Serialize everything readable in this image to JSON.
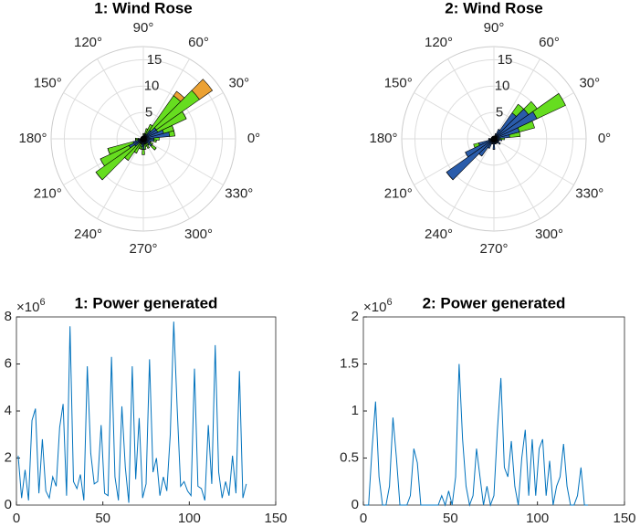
{
  "chart_data": [
    {
      "type": "polar_bar",
      "title": "1: Wind Rose",
      "theta": [
        0,
        10,
        20,
        30,
        40,
        50,
        60,
        70,
        80,
        90,
        100,
        110,
        120,
        130,
        140,
        150,
        160,
        170,
        180,
        190,
        200,
        210,
        220,
        230,
        240,
        250,
        260,
        270,
        280,
        290,
        300,
        310,
        320,
        330,
        340,
        350
      ],
      "series": [
        {
          "color": "#2a5caa",
          "values": [
            2,
            5,
            4,
            3,
            3,
            2,
            1,
            1,
            0.5,
            0.5,
            0.5,
            0.5,
            0.5,
            0.5,
            0.5,
            0.5,
            0.5,
            0.5,
            1,
            1,
            2,
            3,
            2,
            1,
            1,
            1,
            1.5,
            2,
            1,
            1,
            1,
            1,
            2,
            1.5,
            1.5,
            2
          ]
        },
        {
          "color": "#66dd1f",
          "values": [
            1,
            1,
            2,
            6,
            10,
            8,
            2,
            1,
            0.5,
            0.5,
            0,
            0,
            0,
            0,
            0,
            0,
            0,
            0,
            0.5,
            0.5,
            5,
            6,
            9,
            4,
            2,
            1,
            0.5,
            1,
            1,
            0.5,
            1,
            0.5,
            1,
            0.5,
            0,
            0.5
          ]
        },
        {
          "color": "#eba133",
          "values": [
            0,
            0,
            0,
            0,
            3,
            1,
            0,
            0,
            0,
            0,
            0,
            0,
            0,
            0,
            0,
            0,
            0,
            0,
            0,
            0,
            0,
            0,
            0,
            0,
            0,
            0,
            0,
            0,
            0,
            0,
            0,
            0,
            0,
            0,
            0,
            0
          ]
        }
      ],
      "rlim": [
        0,
        17.5
      ],
      "rticks": [
        5,
        10,
        15
      ],
      "thetaticks": [
        {
          "value": 0,
          "label": "0°"
        },
        {
          "value": 30,
          "label": "30°"
        },
        {
          "value": 60,
          "label": "60°"
        },
        {
          "value": 90,
          "label": "90°"
        },
        {
          "value": 120,
          "label": "120°"
        },
        {
          "value": 150,
          "label": "150°"
        },
        {
          "value": 180,
          "label": "180°"
        },
        {
          "value": 210,
          "label": "210°"
        },
        {
          "value": 240,
          "label": "240°"
        },
        {
          "value": 270,
          "label": "270°"
        },
        {
          "value": 300,
          "label": "300°"
        },
        {
          "value": 330,
          "label": "330°"
        }
      ]
    },
    {
      "type": "polar_bar",
      "title": "2: Wind Rose",
      "theta": [
        0,
        10,
        20,
        30,
        40,
        50,
        60,
        70,
        80,
        90,
        100,
        110,
        120,
        130,
        140,
        150,
        160,
        170,
        180,
        190,
        200,
        210,
        220,
        230,
        240,
        250,
        260,
        270,
        280,
        290,
        300,
        310,
        320,
        330,
        340,
        350
      ],
      "series": [
        {
          "color": "#2a5caa",
          "values": [
            1,
            3,
            5,
            9,
            8,
            6,
            2,
            1,
            0.5,
            0.5,
            0.5,
            0.5,
            0.5,
            0.5,
            0.5,
            0.5,
            0.5,
            0.5,
            1,
            1,
            3,
            6,
            11,
            4,
            2,
            1,
            1,
            2,
            1,
            1,
            1,
            1,
            1.5,
            1,
            1,
            1.5
          ]
        },
        {
          "color": "#66dd1f",
          "values": [
            1,
            2,
            3,
            6,
            2,
            2,
            0,
            0,
            0,
            0,
            0,
            0,
            0,
            0,
            0,
            0,
            0,
            0,
            0,
            0,
            1,
            0,
            0,
            0,
            0,
            0,
            0,
            0,
            0,
            0,
            0,
            0,
            0,
            0,
            0,
            0
          ]
        }
      ],
      "rlim": [
        0,
        17.5
      ],
      "rticks": [
        5,
        10,
        15
      ],
      "thetaticks": [
        {
          "value": 0,
          "label": "0°"
        },
        {
          "value": 30,
          "label": "30°"
        },
        {
          "value": 60,
          "label": "60°"
        },
        {
          "value": 90,
          "label": "90°"
        },
        {
          "value": 120,
          "label": "120°"
        },
        {
          "value": 150,
          "label": "150°"
        },
        {
          "value": 180,
          "label": "180°"
        },
        {
          "value": 210,
          "label": "210°"
        },
        {
          "value": 240,
          "label": "240°"
        },
        {
          "value": 270,
          "label": "270°"
        },
        {
          "value": 300,
          "label": "300°"
        },
        {
          "value": 330,
          "label": "330°"
        }
      ]
    },
    {
      "type": "line",
      "title": "1: Power generated",
      "color": "#0072bd",
      "y_multiplier": {
        "base": "×10",
        "exponent": "6"
      },
      "x": [
        1,
        3,
        5,
        7,
        9,
        11,
        13,
        15,
        17,
        19,
        21,
        23,
        25,
        27,
        29,
        31,
        33,
        35,
        37,
        39,
        41,
        43,
        45,
        47,
        49,
        51,
        53,
        55,
        57,
        59,
        61,
        63,
        65,
        67,
        69,
        71,
        73,
        75,
        77,
        79,
        81,
        83,
        85,
        87,
        89,
        91,
        93,
        95,
        97,
        99,
        101,
        103,
        105,
        107,
        109,
        111,
        113,
        115,
        117,
        119,
        121,
        123,
        125,
        127,
        129,
        131,
        133
      ],
      "values": [
        2.1,
        0.3,
        1.5,
        0.2,
        3.6,
        4.1,
        0.5,
        2.8,
        0.6,
        0.3,
        1.2,
        0.8,
        3.3,
        4.3,
        0.4,
        7.6,
        1.0,
        0.7,
        1.3,
        0.2,
        5.9,
        2.2,
        0.9,
        1.0,
        3.4,
        0.5,
        0.4,
        6.3,
        1.2,
        0.2,
        4.2,
        1.6,
        0.1,
        5.9,
        1.1,
        3.7,
        0.3,
        0.9,
        6.2,
        1.4,
        2.0,
        0.4,
        1.2,
        0.6,
        3.0,
        7.8,
        4.1,
        0.8,
        1.0,
        0.6,
        0.4,
        5.8,
        0.8,
        0.7,
        0.2,
        3.4,
        0.9,
        6.8,
        1.4,
        0.3,
        1.0,
        0.4,
        2.1,
        0.5,
        5.7,
        0.3,
        0.9
      ],
      "xlim": [
        0,
        150
      ],
      "xticks": [
        0,
        50,
        100,
        150
      ],
      "ylim": [
        0,
        8
      ],
      "yticks": [
        0,
        2,
        4,
        6,
        8
      ]
    },
    {
      "type": "line",
      "title": "2: Power generated",
      "color": "#0072bd",
      "y_multiplier": {
        "base": "×10",
        "exponent": "6"
      },
      "x": [
        1,
        3,
        5,
        7,
        9,
        11,
        13,
        15,
        17,
        19,
        21,
        23,
        25,
        27,
        29,
        31,
        33,
        35,
        37,
        39,
        41,
        43,
        45,
        47,
        49,
        51,
        53,
        55,
        57,
        59,
        61,
        63,
        65,
        67,
        69,
        71,
        73,
        75,
        77,
        79,
        81,
        83,
        85,
        87,
        89,
        91,
        93,
        95,
        97,
        99,
        101,
        103,
        105,
        107,
        109,
        111,
        113,
        115,
        117,
        119,
        121,
        123,
        125,
        127,
        129
      ],
      "values": [
        0,
        0,
        0.6,
        1.1,
        0.3,
        0,
        0,
        0.2,
        0.93,
        0.5,
        0,
        0,
        0,
        0.1,
        0.6,
        0.45,
        0,
        0,
        0,
        0,
        0,
        0,
        0.1,
        0,
        0.15,
        0,
        0.3,
        1.5,
        0.7,
        0.2,
        0,
        0.1,
        0.6,
        0.3,
        0,
        0.2,
        0,
        0.1,
        0.8,
        1.35,
        0.4,
        0.3,
        0.68,
        0.2,
        0,
        0.5,
        0.8,
        0.1,
        0.7,
        0.1,
        0.6,
        0.7,
        0.1,
        0.47,
        0,
        0.2,
        0.3,
        0.65,
        0.2,
        0,
        0,
        0.1,
        0.4,
        0,
        0
      ],
      "xlim": [
        0,
        150
      ],
      "xticks": [
        0,
        50,
        100,
        150
      ],
      "ylim": [
        0,
        2
      ],
      "yticks": [
        0,
        0.5,
        1,
        1.5,
        2
      ]
    }
  ]
}
